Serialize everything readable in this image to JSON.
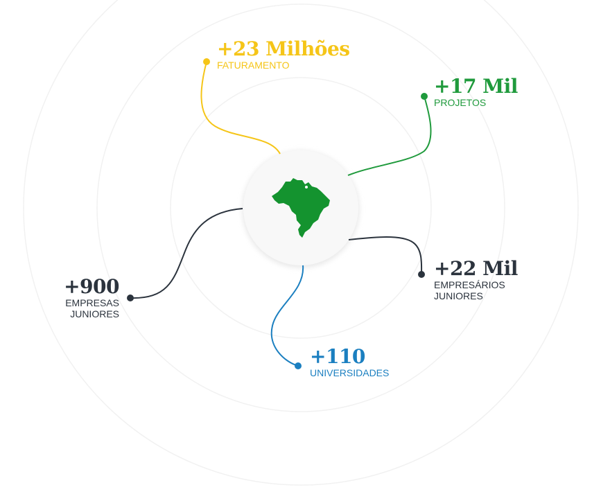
{
  "colors": {
    "yellow": "#f5c518",
    "green": "#1f9a3c",
    "dark": "#2b333d",
    "blue": "#1b7fc0",
    "map": "#14932f",
    "rings": "#f0f0f0"
  },
  "map_icon": "brazil-map-icon",
  "stats": {
    "faturamento": {
      "value": "+23 Milhões",
      "label": "FATURAMENTO"
    },
    "projetos": {
      "value": "+17 Mil",
      "label": "PROJETOS"
    },
    "empresarios": {
      "value": "+22 Mil",
      "label_line1": "EMPRESÁRIOS",
      "label_line2": "JUNIORES"
    },
    "universidades": {
      "value": "+110",
      "label": "UNIVERSIDADES"
    },
    "empresas": {
      "value": "+900",
      "label_line1": "EMPRESAS",
      "label_line2": "JUNIORES"
    }
  }
}
